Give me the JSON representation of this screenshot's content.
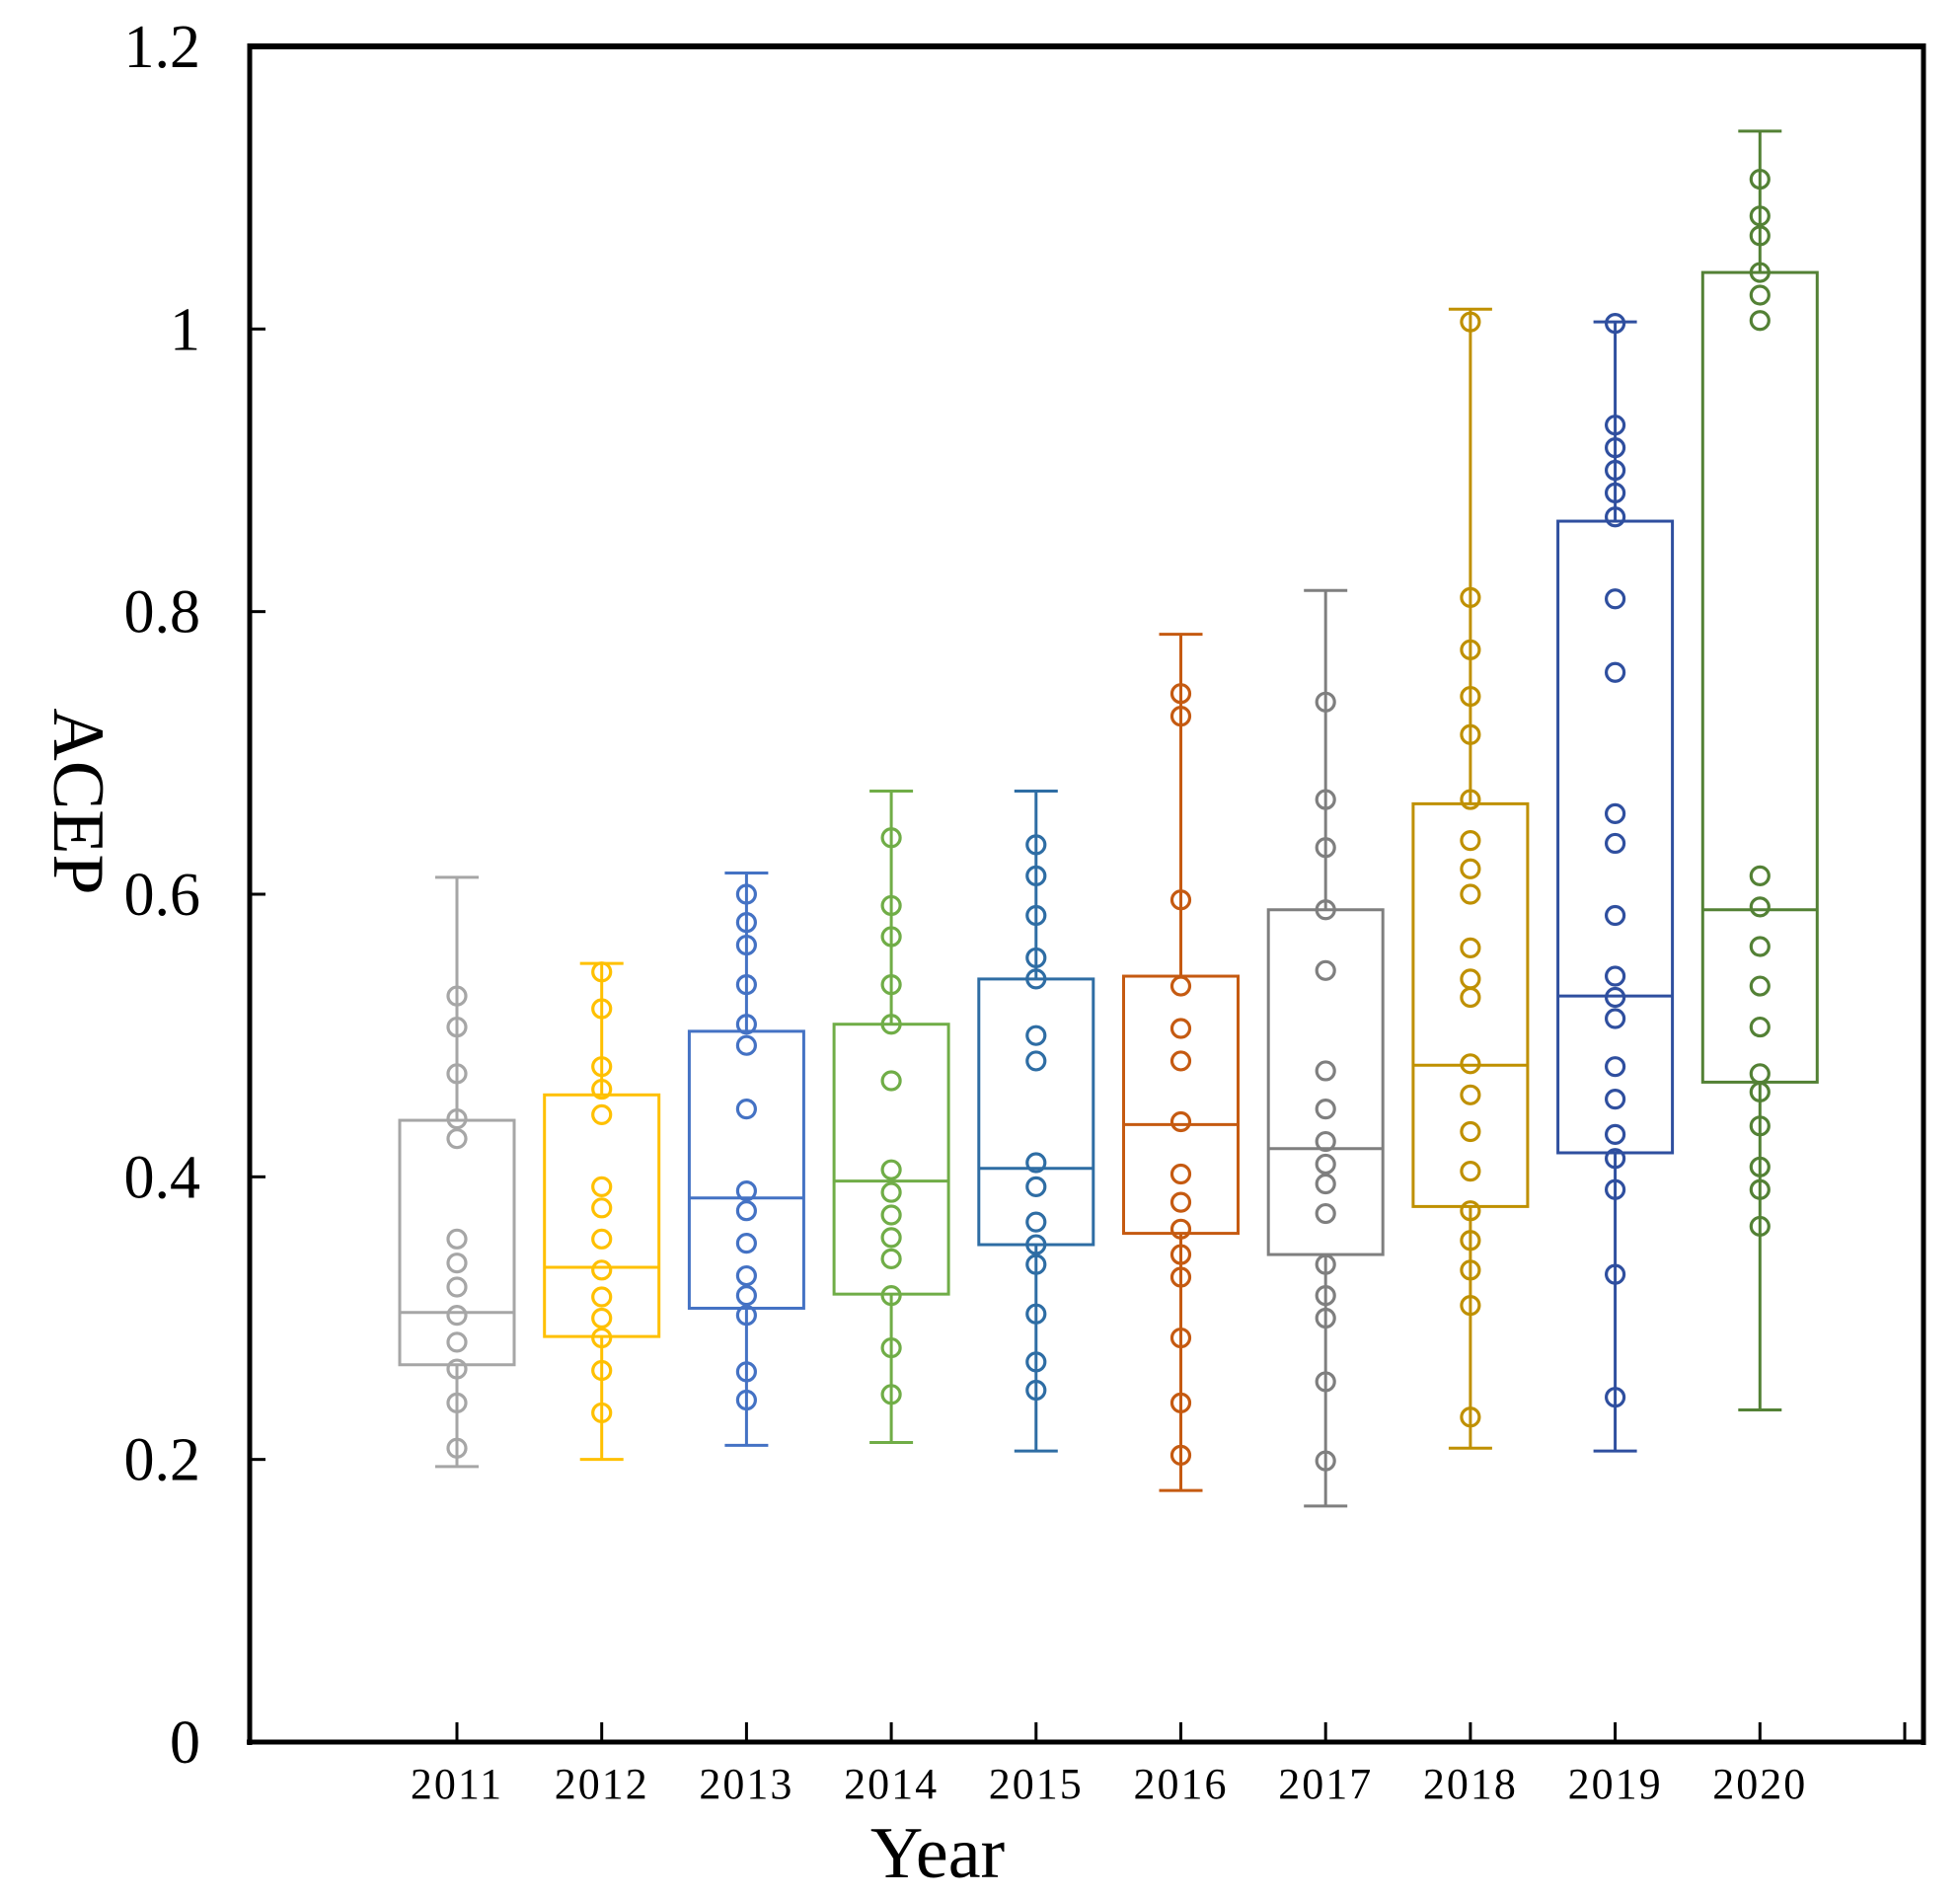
{
  "chart_data": {
    "type": "box",
    "title": "",
    "xlabel": "Year",
    "ylabel": "ACEP",
    "ylim": [
      0,
      1.2
    ],
    "yticks": [
      "0",
      "0.2",
      "0.4",
      "0.6",
      "0.8",
      "1",
      "1.2"
    ],
    "categories": [
      "2011",
      "2012",
      "2013",
      "2014",
      "2015",
      "2016",
      "2017",
      "2018",
      "2019",
      "2020"
    ],
    "colors": [
      "#a6a6a6",
      "#ffc000",
      "#4472c4",
      "#70ad47",
      "#2e6da4",
      "#c55a11",
      "#7f7f7f",
      "#bf9000",
      "#2f4f9f",
      "#538135"
    ],
    "boxes": [
      {
        "year": "2011",
        "min": 0.195,
        "q1": 0.267,
        "median": 0.304,
        "q3": 0.44,
        "max": 0.612,
        "points": [
          0.528,
          0.506,
          0.473,
          0.441,
          0.427,
          0.356,
          0.339,
          0.322,
          0.302,
          0.283,
          0.264,
          0.24,
          0.208
        ]
      },
      {
        "year": "2012",
        "min": 0.2,
        "q1": 0.287,
        "median": 0.336,
        "q3": 0.458,
        "max": 0.551,
        "points": [
          0.545,
          0.519,
          0.478,
          0.462,
          0.444,
          0.393,
          0.378,
          0.356,
          0.334,
          0.315,
          0.3,
          0.286,
          0.263,
          0.233
        ]
      },
      {
        "year": "2013",
        "min": 0.21,
        "q1": 0.307,
        "median": 0.385,
        "q3": 0.503,
        "max": 0.615,
        "points": [
          0.6,
          0.58,
          0.564,
          0.536,
          0.508,
          0.493,
          0.448,
          0.39,
          0.376,
          0.353,
          0.33,
          0.316,
          0.302,
          0.262,
          0.242
        ]
      },
      {
        "year": "2014",
        "min": 0.212,
        "q1": 0.317,
        "median": 0.397,
        "q3": 0.508,
        "max": 0.673,
        "points": [
          0.64,
          0.592,
          0.57,
          0.536,
          0.508,
          0.468,
          0.405,
          0.389,
          0.373,
          0.357,
          0.342,
          0.316,
          0.279,
          0.246
        ]
      },
      {
        "year": "2015",
        "min": 0.206,
        "q1": 0.352,
        "median": 0.406,
        "q3": 0.54,
        "max": 0.673,
        "points": [
          0.635,
          0.613,
          0.585,
          0.555,
          0.54,
          0.5,
          0.482,
          0.41,
          0.393,
          0.368,
          0.352,
          0.338,
          0.303,
          0.269,
          0.249
        ]
      },
      {
        "year": "2016",
        "min": 0.178,
        "q1": 0.36,
        "median": 0.437,
        "q3": 0.542,
        "max": 0.784,
        "points": [
          0.742,
          0.726,
          0.596,
          0.535,
          0.505,
          0.482,
          0.439,
          0.402,
          0.382,
          0.363,
          0.345,
          0.329,
          0.286,
          0.24,
          0.203
        ]
      },
      {
        "year": "2017",
        "min": 0.167,
        "q1": 0.345,
        "median": 0.42,
        "q3": 0.589,
        "max": 0.815,
        "points": [
          0.736,
          0.667,
          0.633,
          0.589,
          0.546,
          0.475,
          0.448,
          0.425,
          0.409,
          0.395,
          0.374,
          0.338,
          0.316,
          0.3,
          0.255,
          0.199
        ]
      },
      {
        "year": "2018",
        "min": 0.208,
        "q1": 0.379,
        "median": 0.479,
        "q3": 0.664,
        "max": 1.014,
        "points": [
          1.005,
          0.81,
          0.773,
          0.74,
          0.713,
          0.667,
          0.638,
          0.618,
          0.6,
          0.562,
          0.54,
          0.527,
          0.48,
          0.458,
          0.432,
          0.404,
          0.376,
          0.355,
          0.334,
          0.309,
          0.23
        ]
      },
      {
        "year": "2019",
        "min": 0.206,
        "q1": 0.417,
        "median": 0.528,
        "q3": 0.864,
        "max": 1.005,
        "points": [
          1.004,
          0.932,
          0.916,
          0.9,
          0.884,
          0.867,
          0.809,
          0.757,
          0.657,
          0.636,
          0.585,
          0.542,
          0.527,
          0.512,
          0.478,
          0.455,
          0.43,
          0.413,
          0.391,
          0.331,
          0.244
        ]
      },
      {
        "year": "2020",
        "min": 0.235,
        "q1": 0.467,
        "median": 0.589,
        "q3": 1.04,
        "max": 1.14,
        "points": [
          1.106,
          1.08,
          1.066,
          1.04,
          1.024,
          1.006,
          0.613,
          0.591,
          0.563,
          0.535,
          0.506,
          0.473,
          0.46,
          0.436,
          0.407,
          0.391,
          0.365
        ]
      }
    ]
  }
}
